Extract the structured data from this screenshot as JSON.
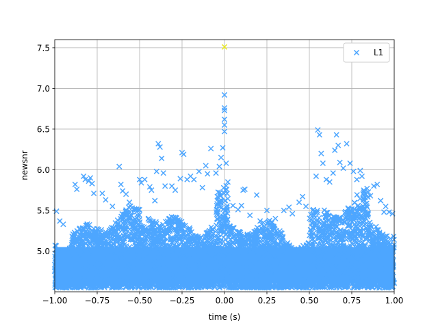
{
  "chart_data": {
    "type": "scatter",
    "title": "",
    "xlabel": "time (s)",
    "ylabel": "newsnr",
    "xlim": [
      -1.0,
      1.0
    ],
    "ylim": [
      4.5,
      7.6
    ],
    "xticks": [
      -1.0,
      -0.75,
      -0.5,
      -0.25,
      0.0,
      0.25,
      0.5,
      0.75,
      1.0
    ],
    "xtick_labels": [
      "−1.00",
      "−0.75",
      "−0.50",
      "−0.25",
      "0.00",
      "0.25",
      "0.50",
      "0.75",
      "1.00"
    ],
    "yticks": [
      5.0,
      5.5,
      6.0,
      6.5,
      7.0,
      7.5
    ],
    "ytick_labels": [
      "5.0",
      "5.5",
      "6.0",
      "6.5",
      "7.0",
      "7.5"
    ],
    "grid": true,
    "marker": "x",
    "legend": {
      "position": "top-right",
      "entries": [
        "L1"
      ]
    },
    "series": [
      {
        "name": "L1",
        "color": "#4da6ff",
        "note_density": "dense cloud of several thousand points between newsnr 4.55 and 5.5 over the full time range",
        "points": [
          [
            -0.99,
            5.49
          ],
          [
            -0.97,
            5.37
          ],
          [
            -0.95,
            5.33
          ],
          [
            -0.88,
            5.82
          ],
          [
            -0.87,
            5.76
          ],
          [
            -0.83,
            5.92
          ],
          [
            -0.82,
            5.88
          ],
          [
            -0.8,
            5.86
          ],
          [
            -0.79,
            5.9
          ],
          [
            -0.78,
            5.83
          ],
          [
            -0.77,
            5.71
          ],
          [
            -0.72,
            5.71
          ],
          [
            -0.7,
            5.63
          ],
          [
            -0.66,
            5.55
          ],
          [
            -0.62,
            6.04
          ],
          [
            -0.61,
            5.82
          ],
          [
            -0.6,
            5.74
          ],
          [
            -0.58,
            5.7
          ],
          [
            -0.56,
            5.6
          ],
          [
            -0.53,
            5.52
          ],
          [
            -0.5,
            5.88
          ],
          [
            -0.49,
            5.84
          ],
          [
            -0.47,
            5.88
          ],
          [
            -0.44,
            5.79
          ],
          [
            -0.43,
            5.75
          ],
          [
            -0.41,
            5.62
          ],
          [
            -0.4,
            5.98
          ],
          [
            -0.39,
            6.32
          ],
          [
            -0.38,
            6.28
          ],
          [
            -0.37,
            6.14
          ],
          [
            -0.36,
            5.96
          ],
          [
            -0.35,
            5.8
          ],
          [
            -0.31,
            5.8
          ],
          [
            -0.29,
            5.75
          ],
          [
            -0.26,
            5.89
          ],
          [
            -0.25,
            6.21
          ],
          [
            -0.24,
            6.19
          ],
          [
            -0.22,
            5.88
          ],
          [
            -0.2,
            5.92
          ],
          [
            -0.18,
            5.88
          ],
          [
            -0.15,
            5.98
          ],
          [
            -0.13,
            5.78
          ],
          [
            -0.11,
            6.05
          ],
          [
            -0.1,
            5.95
          ],
          [
            -0.08,
            6.26
          ],
          [
            -0.05,
            5.96
          ],
          [
            -0.03,
            6.04
          ],
          [
            -0.02,
            6.15
          ],
          [
            -0.01,
            6.27
          ],
          [
            0.0,
            6.47
          ],
          [
            0.0,
            6.62
          ],
          [
            0.0,
            6.76
          ],
          [
            0.0,
            6.92
          ],
          [
            0.0,
            6.73
          ],
          [
            0.0,
            6.55
          ],
          [
            0.01,
            6.08
          ],
          [
            0.02,
            5.85
          ],
          [
            0.05,
            5.56
          ],
          [
            0.08,
            5.51
          ],
          [
            0.1,
            5.56
          ],
          [
            0.11,
            5.75
          ],
          [
            0.12,
            5.76
          ],
          [
            0.15,
            5.44
          ],
          [
            0.19,
            5.69
          ],
          [
            0.21,
            5.37
          ],
          [
            0.25,
            5.5
          ],
          [
            0.3,
            5.4
          ],
          [
            0.35,
            5.5
          ],
          [
            0.38,
            5.54
          ],
          [
            0.4,
            5.46
          ],
          [
            0.44,
            5.6
          ],
          [
            0.46,
            5.67
          ],
          [
            0.48,
            5.55
          ],
          [
            0.52,
            5.5
          ],
          [
            0.54,
            5.92
          ],
          [
            0.55,
            6.49
          ],
          [
            0.56,
            6.43
          ],
          [
            0.57,
            6.2
          ],
          [
            0.58,
            6.08
          ],
          [
            0.6,
            5.88
          ],
          [
            0.62,
            5.85
          ],
          [
            0.64,
            5.96
          ],
          [
            0.65,
            6.24
          ],
          [
            0.66,
            6.43
          ],
          [
            0.67,
            6.3
          ],
          [
            0.68,
            6.09
          ],
          [
            0.7,
            6.02
          ],
          [
            0.72,
            6.32
          ],
          [
            0.74,
            6.08
          ],
          [
            0.76,
            5.98
          ],
          [
            0.78,
            5.88
          ],
          [
            0.8,
            5.99
          ],
          [
            0.81,
            5.92
          ],
          [
            0.84,
            5.77
          ],
          [
            0.86,
            5.68
          ],
          [
            0.88,
            5.8
          ],
          [
            0.9,
            5.82
          ],
          [
            0.92,
            5.62
          ],
          [
            0.94,
            5.48
          ],
          [
            0.95,
            5.55
          ],
          [
            0.97,
            5.48
          ],
          [
            0.99,
            5.46
          ]
        ]
      },
      {
        "name": "",
        "color": "#e8e820",
        "points": [
          [
            0.0,
            7.51
          ]
        ]
      }
    ]
  }
}
